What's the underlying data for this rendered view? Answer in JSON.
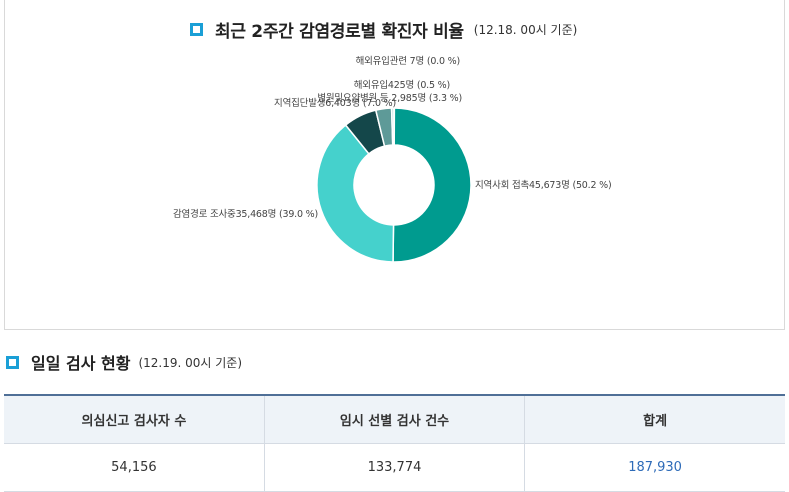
{
  "chart": {
    "title": "최근 2주간 감염경로별 확진자 비율",
    "subtitle": "(12.18. 00시 기준)"
  },
  "chart_data": {
    "type": "pie",
    "title": "최근 2주간 감염경로별 확진자 비율",
    "subtitle": "(12.18. 00시 기준)",
    "donut": true,
    "slices": [
      {
        "name": "지역사회 접촉",
        "count": "45,673명",
        "percent": 50.2,
        "label": "지역사회 접촉45,673명 (50.2 %)",
        "color": "#009b8f"
      },
      {
        "name": "감염경로 조사중",
        "count": "35,468명",
        "percent": 39.0,
        "label": "감염경로 조사중35,468명 (39.0 %)",
        "color": "#45d1cc"
      },
      {
        "name": "지역집단발생",
        "count": "6,403명",
        "percent": 7.0,
        "label": "지역집단발생6,403명 (7.0 %)",
        "color": "#14474a"
      },
      {
        "name": "병원및요양병원 등",
        "count": "2,985명",
        "percent": 3.3,
        "label": "병원및요양병원 등 2,985명 (3.3 %)",
        "color": "#5e9a98"
      },
      {
        "name": "해외유입",
        "count": "425명",
        "percent": 0.5,
        "label": "해외유입425명 (0.5 %)",
        "color": "#bfe0dd"
      },
      {
        "name": "해외유입관련",
        "count": "7명",
        "percent": 0.0,
        "label": "해외유입관련 7명 (0.0 %)",
        "color": "#8fd8cf"
      }
    ]
  },
  "daily": {
    "title": "일일 검사 현황",
    "subtitle": "(12.19. 00시 기준)",
    "headers": [
      "의심신고 검사자 수",
      "임시 선별 검사 건수",
      "합계"
    ],
    "values": [
      "54,156",
      "133,774",
      "187,930"
    ]
  },
  "colors": {
    "accent": "#1a9fd6",
    "table_border": "#4f6f97",
    "header_bg": "#eef3f8",
    "total_text": "#2e6bb8"
  },
  "icons": [
    "square-bullet-icon"
  ]
}
